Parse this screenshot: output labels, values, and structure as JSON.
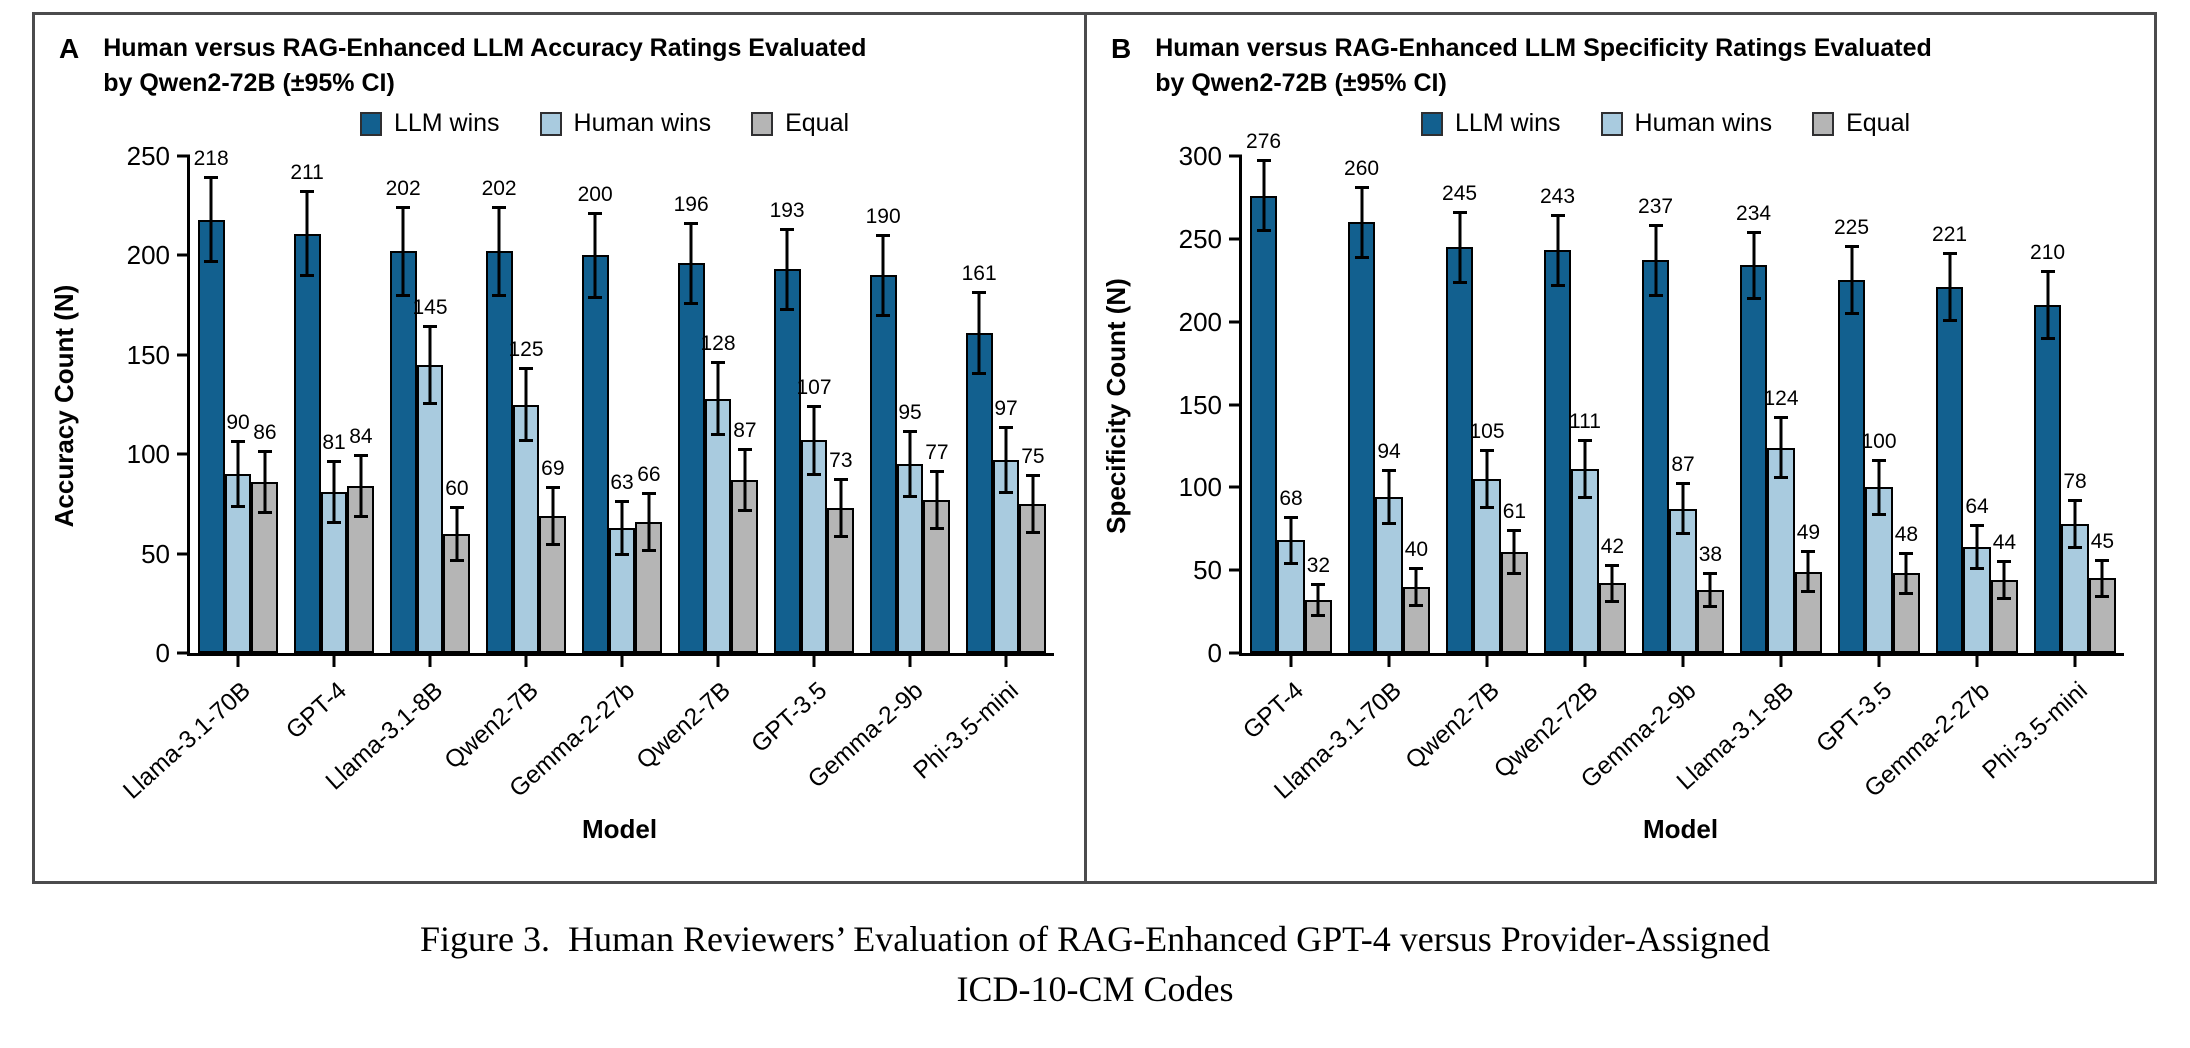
{
  "figure": {
    "caption_label": "Figure 3.",
    "caption_line1": "Human Reviewers’ Evaluation of RAG-Enhanced GPT-4 versus Provider-Assigned",
    "caption_line2": "ICD-10-CM Codes"
  },
  "colors": {
    "llm_wins": "#12608f",
    "human_wins": "#a9cbdf",
    "equal": "#b5b5b5",
    "panel_border": "#4b4b4d",
    "error_bar": "#000000"
  },
  "chart_data": [
    {
      "type": "bar",
      "panel_label": "A",
      "title": "Human versus RAG-Enhanced LLM Accuracy Ratings Evaluated by Qwen2-72B (±95% CI)",
      "title_line1": "Human versus RAG-Enhanced LLM Accuracy Ratings Evaluated",
      "title_line2": "by Qwen2-72B (±95% CI)",
      "xlabel": "Model",
      "ylabel": "Accuracy Count (N)",
      "ylim": [
        0,
        250
      ],
      "ytick_step": 50,
      "grid": false,
      "legend_position": "top-center",
      "categories": [
        "Llama-3.1-70B",
        "GPT-4",
        "Llama-3.1-8B",
        "Qwen2-7B",
        "Gemma-2-27b",
        "Qwen2-7B",
        "GPT-3.5",
        "Gemma-2-9b",
        "Phi-3.5-mini"
      ],
      "series": [
        {
          "name": "LLM wins",
          "color": "#12608f",
          "values": [
            218,
            211,
            202,
            202,
            200,
            196,
            193,
            190,
            161
          ],
          "ci95": [
            22,
            22,
            23,
            23,
            22,
            21,
            21,
            21,
            21
          ]
        },
        {
          "name": "Human wins",
          "color": "#a9cbdf",
          "values": [
            90,
            81,
            145,
            125,
            63,
            128,
            107,
            95,
            97
          ],
          "ci95": [
            17,
            16,
            20,
            19,
            14,
            19,
            18,
            17,
            17
          ]
        },
        {
          "name": "Equal",
          "color": "#b5b5b5",
          "values": [
            86,
            84,
            60,
            69,
            66,
            87,
            73,
            77,
            75
          ],
          "ci95": [
            16,
            16,
            14,
            15,
            15,
            16,
            15,
            15,
            15
          ]
        }
      ]
    },
    {
      "type": "bar",
      "panel_label": "B",
      "title": "Human versus RAG-Enhanced LLM Specificity Ratings Evaluated by Qwen2-72B (±95% CI)",
      "title_line1": "Human versus RAG-Enhanced LLM Specificity Ratings Evaluated",
      "title_line2": "by Qwen2-72B (±95% CI)",
      "xlabel": "Model",
      "ylabel": "Specificity Count (N)",
      "ylim": [
        0,
        300
      ],
      "ytick_step": 50,
      "grid": false,
      "legend_position": "top-center",
      "categories": [
        "GPT-4",
        "Llama-3.1-70B",
        "Qwen2-7B",
        "Qwen2-72B",
        "Gemma-2-9b",
        "Llama-3.1-8B",
        "GPT-3.5",
        "Gemma-2-27b",
        "Phi-3.5-mini"
      ],
      "series": [
        {
          "name": "LLM wins",
          "color": "#12608f",
          "values": [
            276,
            260,
            245,
            243,
            237,
            234,
            225,
            221,
            210
          ],
          "ci95": [
            22,
            22,
            22,
            22,
            22,
            21,
            21,
            21,
            21
          ]
        },
        {
          "name": "Human wins",
          "color": "#a9cbdf",
          "values": [
            68,
            94,
            105,
            111,
            87,
            124,
            100,
            64,
            78
          ],
          "ci95": [
            15,
            17,
            18,
            18,
            16,
            19,
            17,
            14,
            15
          ]
        },
        {
          "name": "Equal",
          "color": "#b5b5b5",
          "values": [
            32,
            40,
            61,
            42,
            38,
            49,
            48,
            44,
            45
          ],
          "ci95": [
            10,
            12,
            14,
            12,
            11,
            13,
            13,
            12,
            12
          ]
        }
      ]
    }
  ]
}
